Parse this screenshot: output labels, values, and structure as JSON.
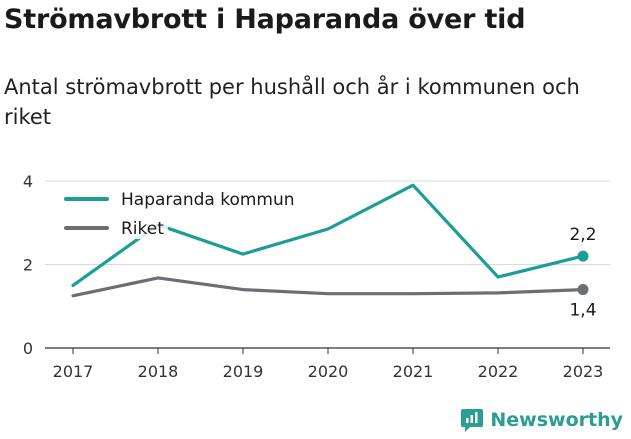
{
  "header": {
    "title": "Strömavbrott i Haparanda över tid",
    "subtitle": "Antal strömavbrott per hushåll och år i kommunen och riket"
  },
  "brand": {
    "name": "Newsworthy",
    "color": "#2a9d94"
  },
  "chart_data": {
    "type": "line",
    "x": [
      "2017",
      "2018",
      "2019",
      "2020",
      "2021",
      "2022",
      "2023"
    ],
    "series": [
      {
        "name": "Haparanda kommun",
        "color": "#1a9e96",
        "values": [
          1.5,
          2.95,
          2.25,
          2.85,
          3.9,
          1.7,
          2.2
        ]
      },
      {
        "name": "Riket",
        "color": "#6b6e75",
        "values": [
          1.25,
          1.68,
          1.4,
          1.3,
          1.3,
          1.32,
          1.4
        ]
      }
    ],
    "yticks": [
      "0",
      "2",
      "4"
    ],
    "ylim": [
      0,
      4
    ],
    "end_labels": [
      "2,2",
      "1,4"
    ],
    "grid": true,
    "legend": "top-left"
  }
}
